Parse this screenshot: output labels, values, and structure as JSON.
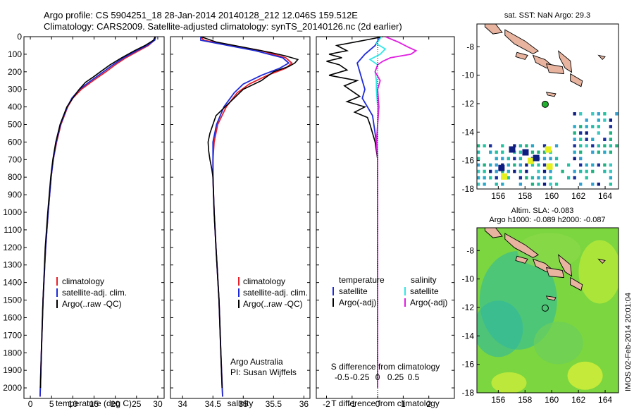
{
  "header": {
    "title_line1": "Argo profile: CS 5904251_18 28-Jan-2014 20140128_212 12.046S 159.512E",
    "title_line2": "Climatology: CARS2009. Satellite-adjusted climatology: synTS_20140126.nc (2d earlier)"
  },
  "colors": {
    "red": "#e8202a",
    "blue": "#1e2ad8",
    "black": "#000000",
    "cyan": "#33e6e6",
    "magenta": "#e01ee0"
  },
  "chart_data": [
    {
      "type": "line",
      "id": "temperature",
      "xlabel": "temperature (deg C)",
      "ylabel": "",
      "xlim": [
        -1.5,
        31.5
      ],
      "ylim": [
        2060,
        0
      ],
      "xticks": [
        0,
        5,
        10,
        15,
        20,
        25,
        30
      ],
      "yticks": [
        0,
        100,
        200,
        300,
        400,
        500,
        600,
        700,
        800,
        900,
        1000,
        1100,
        1200,
        1300,
        1400,
        1500,
        1600,
        1700,
        1800,
        1900,
        2000
      ],
      "legend": [
        "climatology",
        "satellite-adj. clim.",
        "Argo(..raw -QC)"
      ],
      "series": [
        {
          "name": "climatology",
          "color": "red",
          "depth": [
            0,
            20,
            50,
            80,
            120,
            160,
            200,
            250,
            300,
            350,
            400,
            500,
            600,
            700,
            800,
            1000,
            1200,
            1500,
            1800,
            2050
          ],
          "values": [
            29.4,
            29.2,
            27.8,
            25.5,
            22.5,
            20.0,
            17.8,
            14.8,
            12.0,
            10.0,
            8.8,
            7.2,
            6.2,
            5.4,
            4.9,
            4.2,
            3.6,
            3.0,
            2.6,
            2.3
          ]
        },
        {
          "name": "satellite",
          "color": "blue",
          "depth": [
            0,
            20,
            50,
            80,
            120,
            160,
            200,
            250,
            300,
            350,
            400,
            500,
            600,
            700,
            800,
            1000,
            1200,
            1500,
            1800,
            2050
          ],
          "values": [
            29.5,
            29.3,
            27.5,
            25.0,
            22.0,
            19.5,
            17.2,
            14.3,
            11.6,
            9.8,
            8.7,
            7.1,
            6.1,
            5.4,
            4.9,
            4.2,
            3.6,
            3.0,
            2.6,
            2.3
          ]
        },
        {
          "name": "argo",
          "color": "black",
          "depth": [
            0,
            20,
            50,
            80,
            120,
            160,
            200,
            230,
            260,
            300,
            350,
            400,
            500,
            600,
            700,
            800,
            1000,
            1200,
            1500,
            1800,
            2000
          ],
          "values": [
            29.4,
            29.0,
            27.0,
            24.5,
            21.5,
            18.8,
            16.5,
            14.8,
            13.0,
            11.5,
            10.0,
            8.6,
            7.0,
            6.0,
            5.3,
            4.8,
            4.1,
            3.5,
            3.0,
            2.6,
            2.4
          ]
        }
      ]
    },
    {
      "type": "line",
      "id": "salinity",
      "xlabel": "salinity",
      "xlim": [
        33.8,
        36.1
      ],
      "ylim": [
        2060,
        0
      ],
      "xticks": [
        34,
        34.5,
        35,
        35.5,
        36
      ],
      "legend": [
        "climatology",
        "satellite-adj. clim.",
        "Argo(..raw -QC)"
      ],
      "annotation": [
        "Argo Australia",
        "PI: Susan Wijffels"
      ],
      "series": [
        {
          "name": "climatology",
          "color": "red",
          "depth": [
            0,
            20,
            50,
            80,
            120,
            150,
            180,
            220,
            270,
            320,
            400,
            500,
            600,
            700,
            800,
            1000,
            1200,
            1500,
            1800,
            2050
          ],
          "values": [
            34.3,
            34.35,
            34.8,
            35.3,
            35.7,
            35.8,
            35.7,
            35.4,
            35.1,
            34.9,
            34.72,
            34.58,
            34.52,
            34.5,
            34.5,
            34.52,
            34.55,
            34.6,
            34.63,
            34.66
          ]
        },
        {
          "name": "satellite",
          "color": "blue",
          "depth": [
            0,
            20,
            50,
            80,
            120,
            150,
            180,
            220,
            270,
            320,
            400,
            500,
            600,
            700,
            800,
            1000,
            1200,
            1500,
            1800,
            2050
          ],
          "values": [
            34.3,
            34.3,
            34.75,
            35.2,
            35.65,
            35.75,
            35.6,
            35.3,
            35.0,
            34.85,
            34.68,
            34.56,
            34.5,
            34.5,
            34.5,
            34.52,
            34.55,
            34.6,
            34.63,
            34.66
          ]
        },
        {
          "name": "argo",
          "color": "black",
          "depth": [
            0,
            30,
            60,
            90,
            110,
            130,
            150,
            170,
            200,
            250,
            300,
            350,
            400,
            450,
            500,
            550,
            600,
            650,
            700,
            750,
            800,
            1000,
            1200,
            1500,
            1800,
            2000
          ],
          "values": [
            34.3,
            34.55,
            35.0,
            35.45,
            35.7,
            35.9,
            35.85,
            35.75,
            35.5,
            35.3,
            35.0,
            34.85,
            34.7,
            34.55,
            34.5,
            34.45,
            34.42,
            34.43,
            34.45,
            34.48,
            34.5,
            34.52,
            34.55,
            34.6,
            34.63,
            34.65
          ]
        }
      ]
    },
    {
      "type": "line",
      "id": "difference",
      "xlabel": "T difference from climatology",
      "xlabel_top": "S difference from climatology",
      "xlim": [
        -2.4,
        3.0
      ],
      "ylim": [
        2060,
        0
      ],
      "xticks": [
        -2,
        -1,
        0,
        1,
        2
      ],
      "s_ticks": [
        "-0.5",
        "-0.25",
        "0",
        "0.25",
        "0.5"
      ],
      "legend_left_title": "temperature",
      "legend_right_title": "salinity",
      "legend_left": [
        "satellite",
        "Argo(-adj)"
      ],
      "legend_right": [
        "satellite",
        "Argo(-adj)"
      ],
      "series": [
        {
          "name": "T satellite",
          "color": "blue",
          "depth": [
            0,
            50,
            100,
            150,
            200,
            250,
            300,
            350,
            400,
            450,
            500,
            550,
            600,
            700,
            800,
            1000,
            1500,
            2000
          ],
          "values": [
            0.1,
            -0.1,
            -0.5,
            -0.8,
            -0.7,
            -0.6,
            -0.5,
            -0.6,
            -0.4,
            -0.2,
            -0.15,
            -0.1,
            -0.05,
            0,
            0,
            0,
            0,
            0
          ]
        },
        {
          "name": "T argo",
          "color": "black",
          "depth": [
            0,
            20,
            50,
            80,
            100,
            120,
            140,
            160,
            190,
            220,
            250,
            280,
            310,
            340,
            370,
            400,
            430,
            460,
            500,
            550,
            600,
            700,
            800,
            1000,
            1500,
            2000
          ],
          "values": [
            0.2,
            -0.5,
            -1.6,
            -1.2,
            -1.9,
            -1.4,
            -2.0,
            -1.5,
            -1.2,
            -1.9,
            -0.8,
            -1.3,
            -1.0,
            -0.7,
            -1.2,
            -0.5,
            -0.9,
            -0.4,
            -0.3,
            -0.2,
            -0.1,
            0,
            0,
            0,
            0,
            0
          ]
        },
        {
          "name": "S satellite",
          "color": "cyan",
          "depth": [
            0,
            40,
            70,
            100,
            130,
            160,
            200,
            250,
            300,
            400,
            500,
            600,
            800,
            1000,
            1500,
            2000
          ],
          "values": [
            0.15,
            -0.05,
            0.3,
            0.1,
            -0.3,
            0.0,
            -0.1,
            -0.05,
            -0.05,
            0,
            0,
            0,
            0,
            0,
            0,
            0
          ]
        },
        {
          "name": "S argo",
          "color": "magenta",
          "depth": [
            0,
            30,
            60,
            80,
            100,
            120,
            140,
            160,
            200,
            250,
            300,
            400,
            500,
            600,
            700,
            800,
            1000,
            1500,
            2000
          ],
          "values": [
            0.3,
            0.8,
            1.2,
            1.5,
            1.3,
            0.5,
            0.2,
            0.0,
            -0.1,
            0.1,
            0.0,
            0.05,
            0.0,
            -0.05,
            0,
            0,
            0,
            0,
            0
          ]
        }
      ]
    },
    {
      "type": "heatmap",
      "id": "sst_map",
      "title": "sat. SST: NaN Argo: 29.3",
      "xticks": [
        156,
        158,
        160,
        162,
        164
      ],
      "yticks": [
        -8,
        -10,
        -12,
        -14,
        -16,
        -18
      ],
      "xlim": [
        154.4,
        165.0
      ],
      "ylim": [
        -18,
        -6.4
      ],
      "argo_position": {
        "lon": 159.512,
        "lat": -12.046
      }
    },
    {
      "type": "heatmap",
      "id": "sla_map",
      "title": "Altim. SLA: -0.083",
      "subtitle": "Argo h1000: -0.089 h2000: -0.087",
      "xticks": [
        156,
        158,
        160,
        162,
        164
      ],
      "yticks": [
        -8,
        -10,
        -12,
        -14,
        -16,
        -18
      ],
      "xlim": [
        154.4,
        165.0
      ],
      "ylim": [
        -18,
        -6.4
      ],
      "argo_position": {
        "lon": 159.512,
        "lat": -12.046
      }
    }
  ],
  "footer": {
    "credit": "IMOS 02-Feb-2014 20:01:04"
  }
}
